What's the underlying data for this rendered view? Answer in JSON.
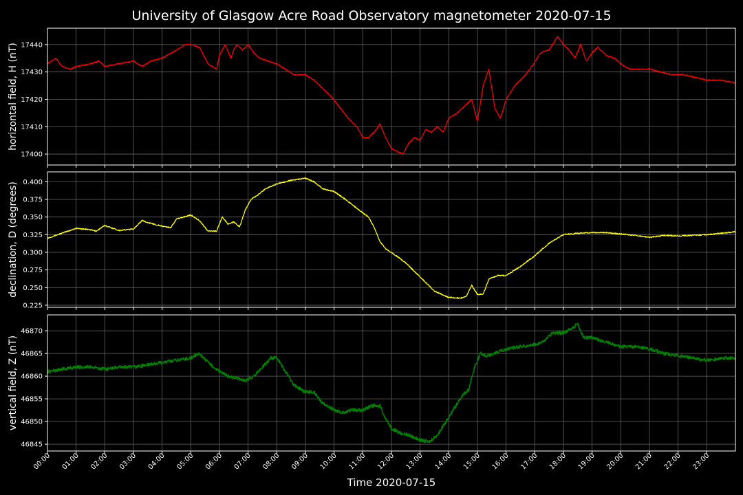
{
  "title": "University of Glasgow Acre Road Observatory magnetometer 2020-07-15",
  "xlabel": "Time 2020-07-15",
  "x_ticks": [
    "00:00",
    "01:00",
    "02:00",
    "03:00",
    "04:00",
    "05:00",
    "06:00",
    "07:00",
    "08:00",
    "09:00",
    "10:00",
    "11:00",
    "12:00",
    "13:00",
    "14:00",
    "15:00",
    "16:00",
    "17:00",
    "18:00",
    "19:00",
    "20:00",
    "21:00",
    "22:00",
    "23:00"
  ],
  "chart_data": [
    {
      "type": "line",
      "ylabel": "horizontal field, H (nT)",
      "color": "#ff0000",
      "grid": true,
      "xlim": [
        0,
        24
      ],
      "ylim": [
        17396,
        17446
      ],
      "y_ticks": [
        17400,
        17410,
        17420,
        17430,
        17440
      ],
      "series": [
        {
          "x": [
            0,
            0.3,
            0.5,
            0.8,
            1.0,
            1.5,
            1.8,
            2.0,
            2.5,
            3.0,
            3.3,
            3.6,
            4.0,
            4.5,
            4.8,
            5.0,
            5.3,
            5.6,
            5.9,
            6.0,
            6.2,
            6.4,
            6.5,
            6.6,
            6.8,
            7.0,
            7.2,
            7.4,
            7.7,
            8.0,
            8.3,
            8.6,
            9.0,
            9.3,
            9.6,
            9.9,
            10.2,
            10.5,
            10.8,
            11.0,
            11.2,
            11.4,
            11.6,
            11.8,
            12.0,
            12.2,
            12.4,
            12.6,
            12.8,
            13.0,
            13.2,
            13.4,
            13.6,
            13.8,
            14.0,
            14.3,
            14.6,
            14.8,
            15.0,
            15.2,
            15.4,
            15.6,
            15.8,
            16.0,
            16.3,
            16.6,
            16.9,
            17.2,
            17.5,
            17.8,
            18.0,
            18.2,
            18.4,
            18.6,
            18.8,
            19.0,
            19.2,
            19.5,
            19.8,
            20.0,
            20.3,
            20.6,
            21.0,
            21.4,
            21.8,
            22.2,
            22.6,
            23.0,
            23.5,
            24.0
          ],
          "y": [
            17433,
            17435,
            17432,
            17431,
            17432,
            17433,
            17434,
            17432,
            17433,
            17434,
            17432,
            17434,
            17435,
            17438,
            17440,
            17440,
            17439,
            17433,
            17431,
            17436,
            17440,
            17435,
            17438,
            17440,
            17438,
            17440,
            17437,
            17435,
            17434,
            17433,
            17431,
            17429,
            17429,
            17427,
            17424,
            17421,
            17417,
            17413,
            17410,
            17406,
            17406,
            17408,
            17411,
            17406,
            17402,
            17401,
            17400,
            17404,
            17406,
            17405,
            17409,
            17408,
            17410,
            17408,
            17413,
            17415,
            17418,
            17420,
            17412,
            17425,
            17431,
            17417,
            17413,
            17420,
            17425,
            17428,
            17432,
            17437,
            17438,
            17443,
            17440,
            17438,
            17435,
            17440,
            17434,
            17437,
            17439,
            17436,
            17435,
            17433,
            17431,
            17431,
            17431,
            17430,
            17429,
            17429,
            17428,
            17427,
            17427,
            17426
          ]
        }
      ]
    },
    {
      "type": "line",
      "ylabel": "declination, D (degrees)",
      "color": "#ffff00",
      "grid": true,
      "xlim": [
        0,
        24
      ],
      "ylim": [
        0.222,
        0.414
      ],
      "y_ticks": [
        0.225,
        0.25,
        0.275,
        0.3,
        0.325,
        0.35,
        0.375,
        0.4
      ],
      "y_tick_labels": [
        "0.225",
        "0.250",
        "0.275",
        "0.300",
        "0.325",
        "0.350",
        "0.375",
        "0.400"
      ],
      "series": [
        {
          "x": [
            0,
            0.5,
            1.0,
            1.5,
            1.7,
            2.0,
            2.5,
            3.0,
            3.3,
            3.6,
            4.0,
            4.3,
            4.5,
            5.0,
            5.3,
            5.6,
            5.9,
            6.1,
            6.3,
            6.5,
            6.7,
            6.9,
            7.1,
            7.3,
            7.6,
            8.0,
            8.5,
            9.0,
            9.3,
            9.6,
            10.0,
            10.4,
            10.8,
            11.2,
            11.4,
            11.6,
            11.8,
            12.0,
            12.5,
            13.0,
            13.5,
            14.0,
            14.4,
            14.6,
            14.8,
            15.0,
            15.2,
            15.4,
            15.7,
            16.0,
            16.5,
            17.0,
            17.5,
            18.0,
            18.5,
            19.0,
            19.5,
            20.0,
            20.5,
            21.0,
            21.5,
            22.0,
            22.5,
            23.0,
            23.5,
            24.0
          ],
          "y": [
            0.32,
            0.327,
            0.334,
            0.332,
            0.33,
            0.338,
            0.331,
            0.333,
            0.345,
            0.341,
            0.337,
            0.335,
            0.347,
            0.353,
            0.345,
            0.33,
            0.33,
            0.35,
            0.34,
            0.343,
            0.336,
            0.36,
            0.375,
            0.38,
            0.39,
            0.397,
            0.402,
            0.405,
            0.4,
            0.39,
            0.386,
            0.375,
            0.362,
            0.35,
            0.335,
            0.315,
            0.305,
            0.3,
            0.285,
            0.265,
            0.245,
            0.236,
            0.235,
            0.237,
            0.253,
            0.24,
            0.241,
            0.262,
            0.267,
            0.267,
            0.28,
            0.295,
            0.313,
            0.325,
            0.327,
            0.328,
            0.328,
            0.326,
            0.324,
            0.321,
            0.324,
            0.323,
            0.324,
            0.325,
            0.327,
            0.329
          ]
        }
      ]
    },
    {
      "type": "line",
      "ylabel": "vertical field, Z (nT)",
      "color": "#008000",
      "grid": true,
      "xlim": [
        0,
        24
      ],
      "ylim": [
        46843.5,
        46873.5
      ],
      "y_ticks": [
        46845,
        46850,
        46855,
        46860,
        46865,
        46870
      ],
      "series": [
        {
          "x": [
            0,
            0.5,
            1.0,
            1.5,
            2.0,
            2.5,
            3.0,
            3.5,
            4.0,
            4.5,
            5.0,
            5.3,
            5.6,
            6.0,
            6.3,
            6.6,
            6.9,
            7.2,
            7.5,
            7.8,
            8.0,
            8.3,
            8.6,
            9.0,
            9.3,
            9.6,
            10.0,
            10.3,
            10.6,
            11.0,
            11.3,
            11.6,
            11.8,
            12.0,
            12.3,
            12.6,
            13.0,
            13.3,
            13.6,
            13.9,
            14.2,
            14.5,
            14.7,
            14.9,
            15.1,
            15.3,
            15.6,
            16.0,
            16.5,
            17.0,
            17.3,
            17.6,
            18.0,
            18.3,
            18.5,
            18.7,
            19.0,
            19.5,
            20.0,
            20.5,
            21.0,
            21.5,
            22.0,
            22.5,
            23.0,
            23.5,
            24.0
          ],
          "y": [
            46861,
            46861.5,
            46862,
            46862,
            46861.5,
            46862,
            46862,
            46862.5,
            46863,
            46863.5,
            46864,
            46865,
            46863,
            46861,
            46860,
            46859.5,
            46859,
            46860,
            46862,
            46864,
            46864,
            46861,
            46858,
            46856.5,
            46856.5,
            46854,
            46852.5,
            46852,
            46852.5,
            46852.5,
            46853.5,
            46853.5,
            46850.5,
            46848.5,
            46847.5,
            46847,
            46846,
            46845.5,
            46847,
            46850,
            46853,
            46856,
            46857,
            46862,
            46865,
            46864.5,
            46865,
            46866,
            46866.5,
            46867,
            46867.5,
            46869.5,
            46869.5,
            46870.5,
            46871.5,
            46868.5,
            46868.5,
            46867.5,
            46866.5,
            46866.5,
            46866,
            46865,
            46864.5,
            46864,
            46863.5,
            46864,
            46864
          ]
        }
      ]
    }
  ]
}
